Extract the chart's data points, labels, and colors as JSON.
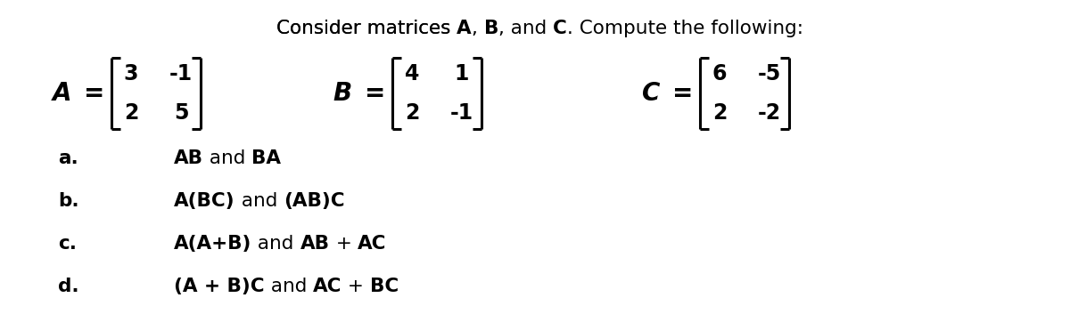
{
  "bg_color": "#ffffff",
  "text_color": "#000000",
  "title": "Consider matrices ",
  "title_bold_parts": [
    "A",
    "B",
    "C"
  ],
  "title_normal_parts": [
    ", ",
    ", and ",
    ". Compute the following:"
  ],
  "matrix_A_vals": [
    [
      3,
      -1
    ],
    [
      2,
      5
    ]
  ],
  "matrix_B_vals": [
    [
      4,
      1
    ],
    [
      2,
      -1
    ]
  ],
  "matrix_C_vals": [
    [
      6,
      -5
    ],
    [
      2,
      -2
    ]
  ],
  "items": [
    {
      "label": "a.",
      "segments": [
        [
          "AB",
          true
        ],
        [
          " and ",
          false
        ],
        [
          "BA",
          true
        ]
      ]
    },
    {
      "label": "b.",
      "segments": [
        [
          "A(BC)",
          true
        ],
        [
          " and ",
          false
        ],
        [
          "(AB)C",
          true
        ]
      ]
    },
    {
      "label": "c.",
      "segments": [
        [
          "A(A+B)",
          true
        ],
        [
          " and ",
          false
        ],
        [
          "AB",
          true
        ],
        [
          " + ",
          false
        ],
        [
          "AC",
          true
        ]
      ]
    },
    {
      "label": "d.",
      "segments": [
        [
          "(A + B)C",
          true
        ],
        [
          " and ",
          false
        ],
        [
          "AC",
          true
        ],
        [
          " + ",
          false
        ],
        [
          "BC",
          true
        ]
      ]
    }
  ],
  "fig_width": 12.0,
  "fig_height": 3.62,
  "dpi": 100
}
